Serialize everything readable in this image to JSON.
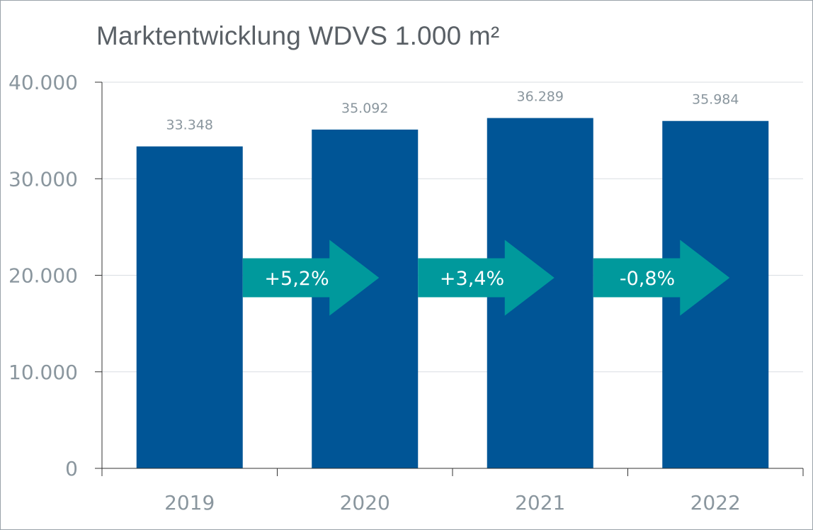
{
  "colors": {
    "bar": "#005596",
    "arrow": "#00999c",
    "grid": "#d9dee2",
    "axis": "#333333",
    "text": "#8a969e",
    "title": "#5a6066"
  },
  "chart_data": {
    "type": "bar",
    "title": "Marktentwicklung WDVS 1.000 m²",
    "xlabel": "",
    "ylabel": "",
    "categories": [
      "2019",
      "2020",
      "2021",
      "2022"
    ],
    "values": [
      33348,
      35092,
      36289,
      35984
    ],
    "value_labels": [
      "33.348",
      "35.092",
      "36.289",
      "35.984"
    ],
    "ylim": [
      0,
      40000
    ],
    "yticks": [
      0,
      10000,
      20000,
      30000,
      40000
    ],
    "ytick_labels": [
      "0",
      "10.000",
      "20.000",
      "30.000",
      "40.000"
    ],
    "grid": true,
    "annotations": [
      {
        "between": [
          "2019",
          "2020"
        ],
        "text": "+5,2%"
      },
      {
        "between": [
          "2020",
          "2021"
        ],
        "text": "+3,4%"
      },
      {
        "between": [
          "2021",
          "2022"
        ],
        "text": "-0,8%"
      }
    ]
  }
}
